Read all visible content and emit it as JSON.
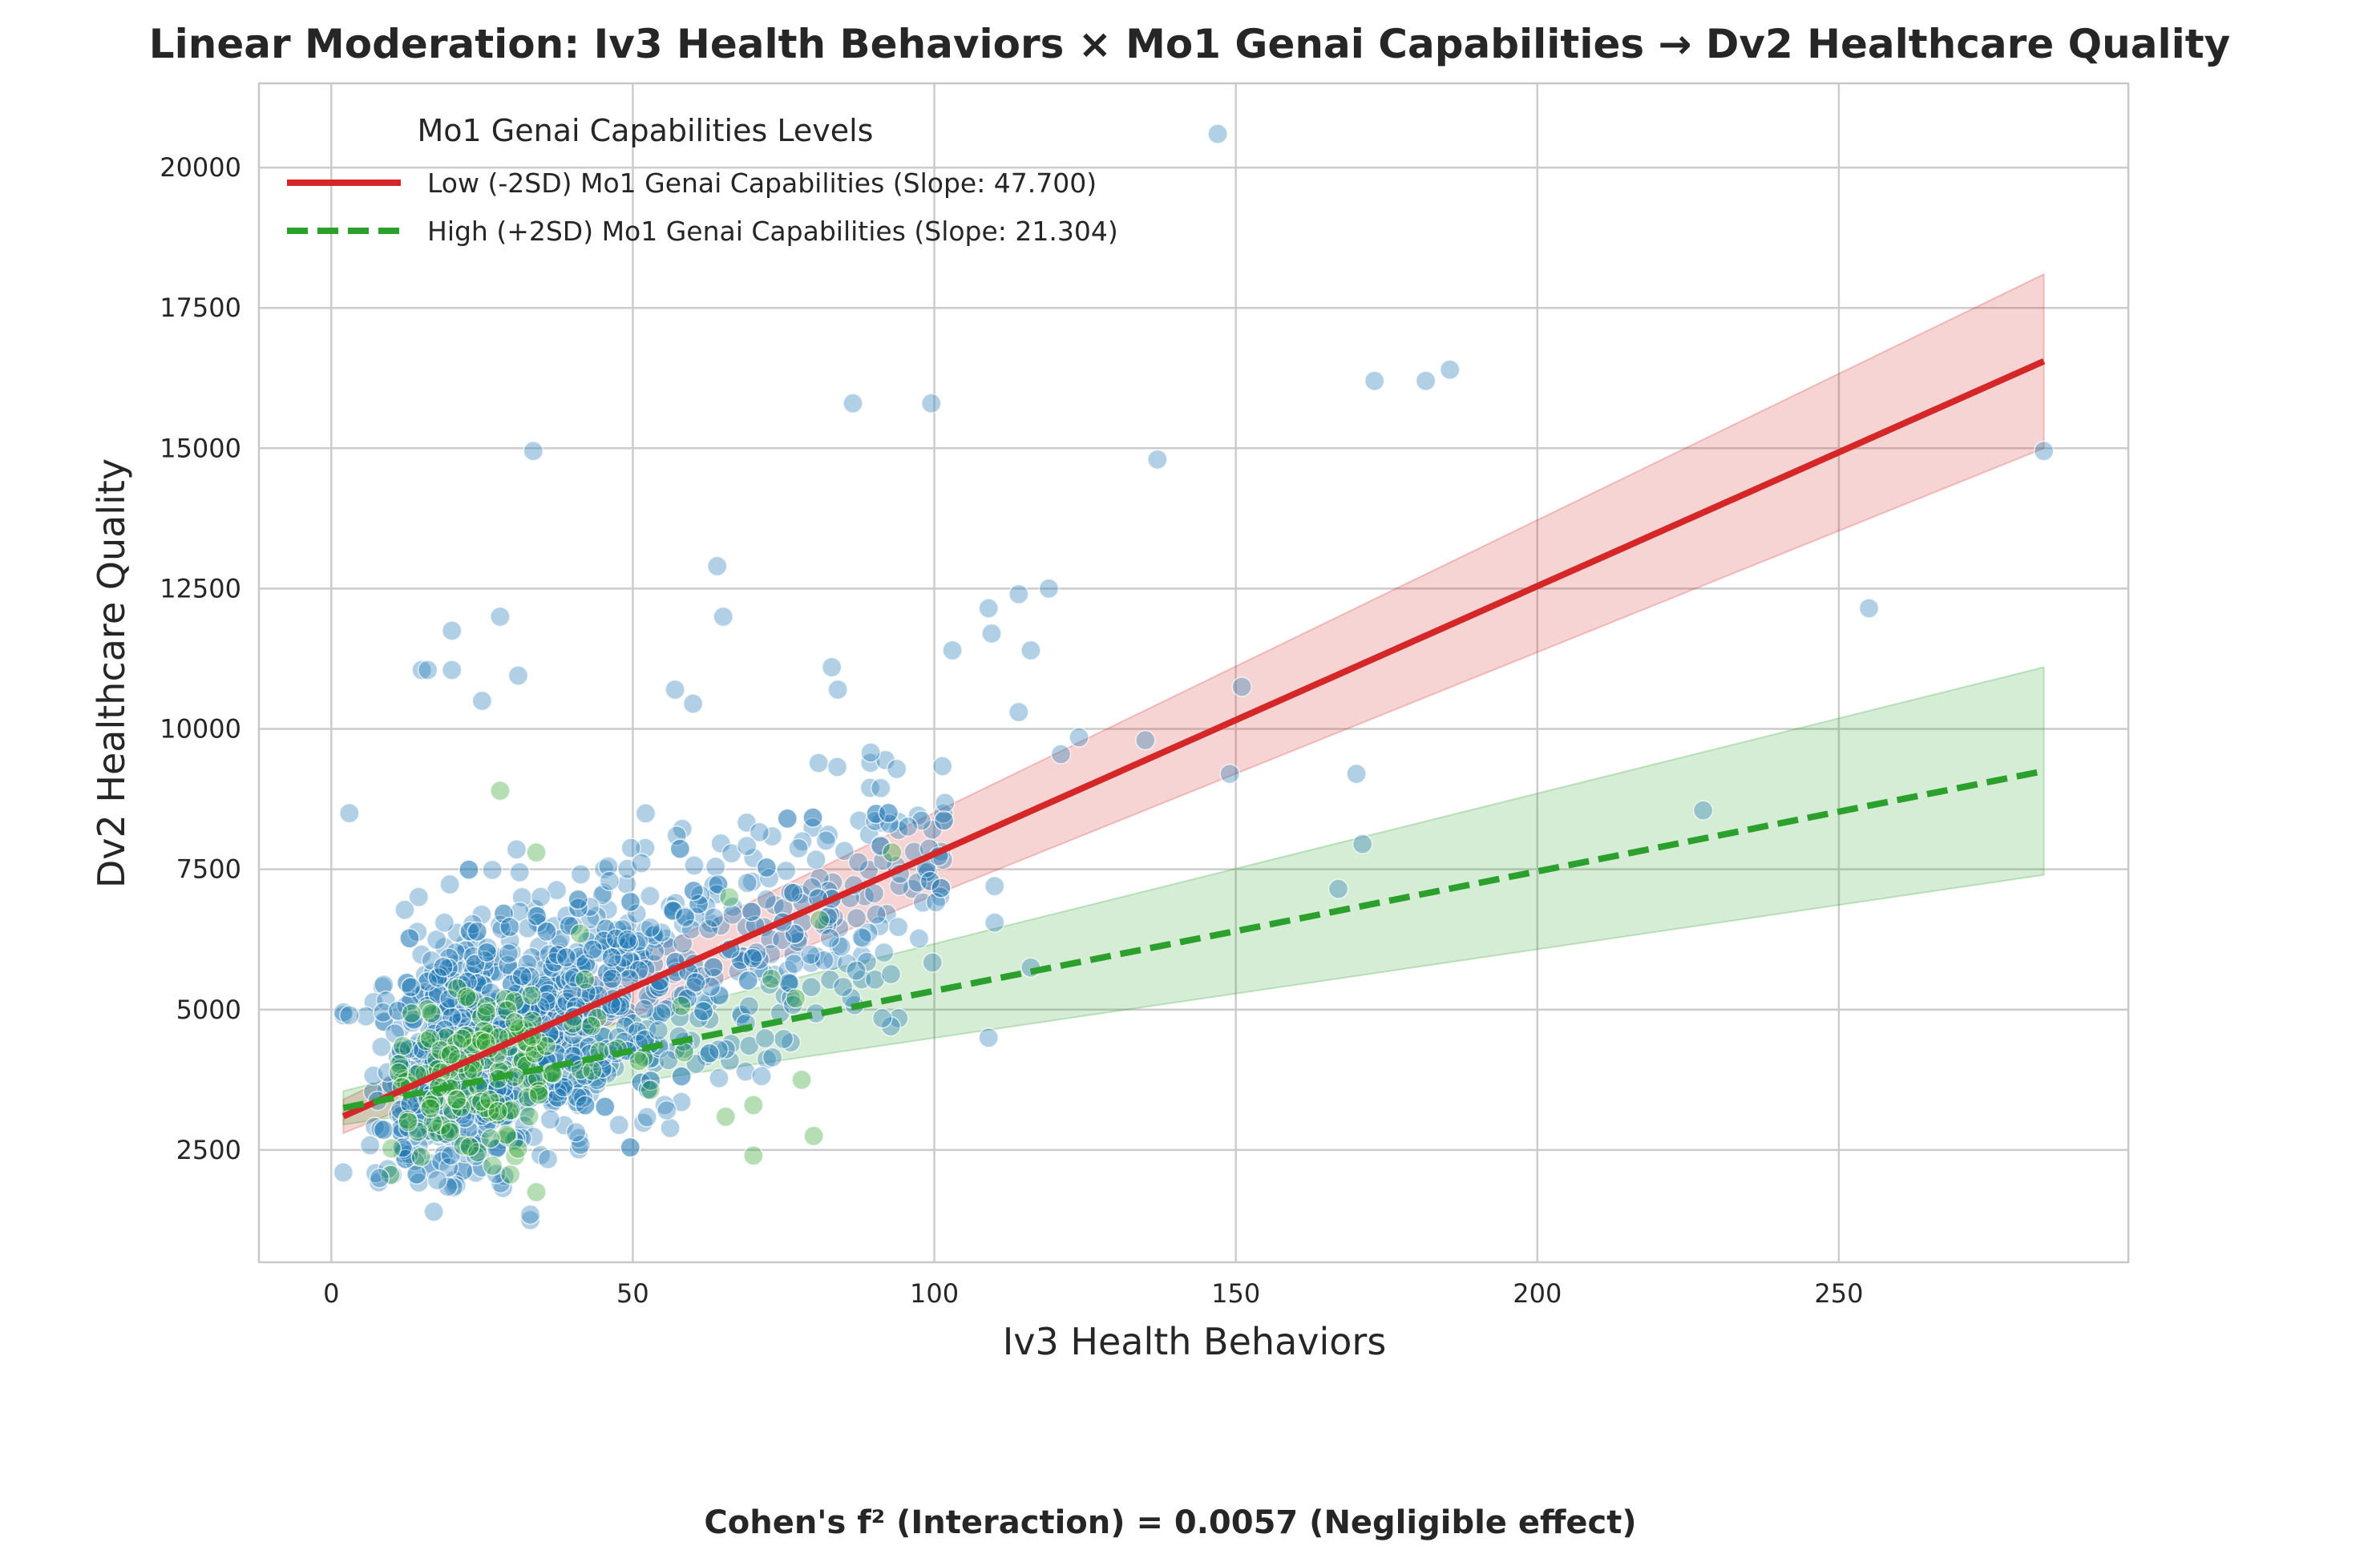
{
  "chart_data": {
    "type": "scatter",
    "title": "Linear Moderation: Iv3 Health Behaviors × Mo1 Genai Capabilities → Dv2 Healthcare Quality",
    "xlabel": "Iv3 Health Behaviors",
    "ylabel": "Dv2 Healthcare Quality",
    "xlim": [
      -12,
      298
    ],
    "ylim": [
      500,
      21500
    ],
    "xticks": [
      0,
      50,
      100,
      150,
      200,
      250
    ],
    "yticks": [
      2500,
      5000,
      7500,
      10000,
      12500,
      15000,
      17500,
      20000
    ],
    "grid": true,
    "legend": {
      "title": "Mo1 Genai Capabilities Levels",
      "placement": "upper-left",
      "entries": [
        {
          "label": "Low (-2SD) Mo1 Genai Capabilities (Slope: 47.700)",
          "color": "#d62728",
          "style": "solid"
        },
        {
          "label": "High (+2SD) Mo1 Genai Capabilities (Slope: 21.304)",
          "color": "#2ca02c",
          "style": "dashed"
        }
      ]
    },
    "footnote": "Cohen's f² (Interaction) = 0.0057 (Negligible effect)",
    "series": [
      {
        "key": "low",
        "line": {
          "x": [
            2,
            284
          ],
          "y": [
            3100,
            16550
          ]
        },
        "band": {
          "x": [
            2,
            284
          ],
          "lower": [
            2800,
            15000
          ],
          "upper": [
            3400,
            18100
          ]
        },
        "color": "#d62728"
      },
      {
        "key": "high",
        "line": {
          "x": [
            2,
            284
          ],
          "y": [
            3250,
            9250
          ]
        },
        "band": {
          "x": [
            2,
            284
          ],
          "lower": [
            2950,
            7400
          ],
          "upper": [
            3550,
            11100
          ]
        },
        "color": "#2ca02c"
      }
    ],
    "point_colors": {
      "blue": "#1f77b4",
      "green": "#2ca02c"
    },
    "outliers_blue": [
      [
        147,
        20600
      ],
      [
        173,
        16200
      ],
      [
        181.5,
        16200
      ],
      [
        185.5,
        16400
      ],
      [
        284,
        14950
      ],
      [
        137,
        14800
      ],
      [
        86.5,
        15800
      ],
      [
        99.5,
        15800
      ],
      [
        33.5,
        14950
      ],
      [
        255,
        12150
      ],
      [
        227.5,
        8550
      ],
      [
        170,
        9200
      ],
      [
        171,
        7950
      ],
      [
        167,
        7150
      ],
      [
        151,
        10750
      ],
      [
        149,
        9200
      ],
      [
        135,
        9800
      ],
      [
        119,
        12500
      ],
      [
        114,
        12400
      ],
      [
        109,
        12150
      ],
      [
        103,
        11400
      ],
      [
        109.5,
        11700
      ],
      [
        116,
        11400
      ],
      [
        114,
        10300
      ],
      [
        121,
        9550
      ],
      [
        124,
        9850
      ],
      [
        64,
        12900
      ],
      [
        65,
        12000
      ],
      [
        28,
        12000
      ],
      [
        20,
        11750
      ],
      [
        31,
        10950
      ],
      [
        15,
        11050
      ],
      [
        16,
        11050
      ],
      [
        20,
        11050
      ],
      [
        25,
        10500
      ],
      [
        83,
        11100
      ],
      [
        84,
        10700
      ],
      [
        57,
        10700
      ],
      [
        60,
        10450
      ],
      [
        110,
        7200
      ],
      [
        109,
        4500
      ],
      [
        110,
        6550
      ],
      [
        3,
        8500
      ],
      [
        116,
        5750
      ],
      [
        2,
        4900
      ],
      [
        2,
        4950
      ],
      [
        3,
        4900
      ],
      [
        2,
        2100
      ],
      [
        33,
        1250
      ],
      [
        33,
        1350
      ],
      [
        17,
        1400
      ],
      [
        8,
        2000
      ]
    ],
    "outliers_green": [
      [
        28,
        8900
      ],
      [
        34,
        7800
      ],
      [
        93,
        7800
      ],
      [
        70,
        2400
      ],
      [
        80,
        2750
      ],
      [
        70,
        3300
      ],
      [
        73,
        5550
      ],
      [
        77,
        5200
      ],
      [
        78,
        3750
      ],
      [
        34,
        1750
      ],
      [
        66,
        7000
      ],
      [
        81,
        6600
      ]
    ]
  }
}
